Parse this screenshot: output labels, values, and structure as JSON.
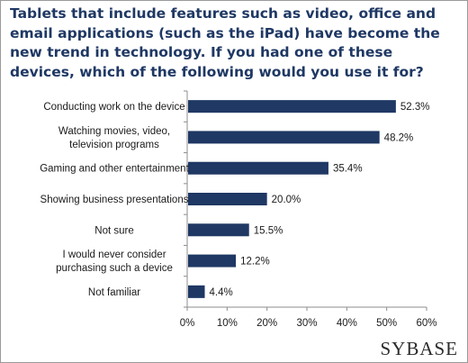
{
  "chart_data": {
    "type": "bar",
    "orientation": "horizontal",
    "title": "Tablets that include features such as video, office and email applications (such as the iPad) have become the new trend in technology. If you had one of these devices, which of the following would you use it for?",
    "categories": [
      [
        "Conducting work on the device"
      ],
      [
        "Watching movies, video,",
        "television programs"
      ],
      [
        "Gaming and other entertainment"
      ],
      [
        "Showing business presentations"
      ],
      [
        "Not sure"
      ],
      [
        "I would never consider",
        "purchasing such a device"
      ],
      [
        "Not familiar"
      ]
    ],
    "values": [
      52.3,
      48.2,
      35.4,
      20.0,
      15.5,
      12.2,
      4.4
    ],
    "value_labels": [
      "52.3%",
      "48.2%",
      "35.4%",
      "20.0%",
      "15.5%",
      "12.2%",
      "4.4%"
    ],
    "xlim": [
      0,
      60
    ],
    "ticks": [
      "0%",
      "10%",
      "20%",
      "30%",
      "40%",
      "50%",
      "60%"
    ],
    "grid": false,
    "bar_color": "#1f3864"
  },
  "brand": {
    "logo_text": "SYBASE"
  }
}
